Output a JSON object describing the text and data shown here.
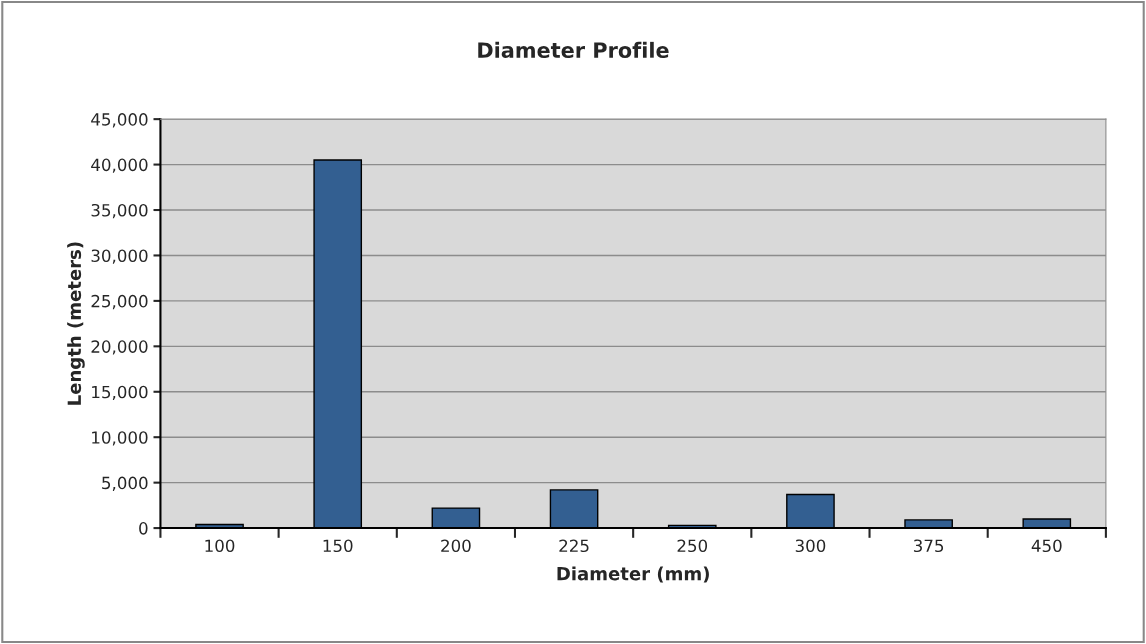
{
  "chart_data": {
    "type": "bar",
    "title": "Diameter Profile",
    "xlabel": "Diameter (mm)",
    "ylabel": "Length (meters)",
    "categories": [
      "100",
      "150",
      "200",
      "225",
      "250",
      "300",
      "375",
      "450"
    ],
    "values": [
      400,
      40500,
      2200,
      4200,
      300,
      3700,
      900,
      1000
    ],
    "color": "#335f91",
    "ylim": [
      0,
      45000
    ],
    "yticks": [
      0,
      {
        "value": 5000,
        "label": "5,000"
      },
      {
        "value": 10000,
        "label": "10,000"
      },
      {
        "value": 15000,
        "label": "15,000"
      },
      {
        "value": 20000,
        "label": "20,000"
      },
      {
        "value": 25000,
        "label": "25,000"
      },
      {
        "value": 30000,
        "label": "30,000"
      },
      {
        "value": 35000,
        "label": "35,000"
      },
      {
        "value": 40000,
        "label": "40,000"
      },
      {
        "value": 45000,
        "label": "45,000"
      }
    ],
    "grid": "y",
    "legend": false
  }
}
